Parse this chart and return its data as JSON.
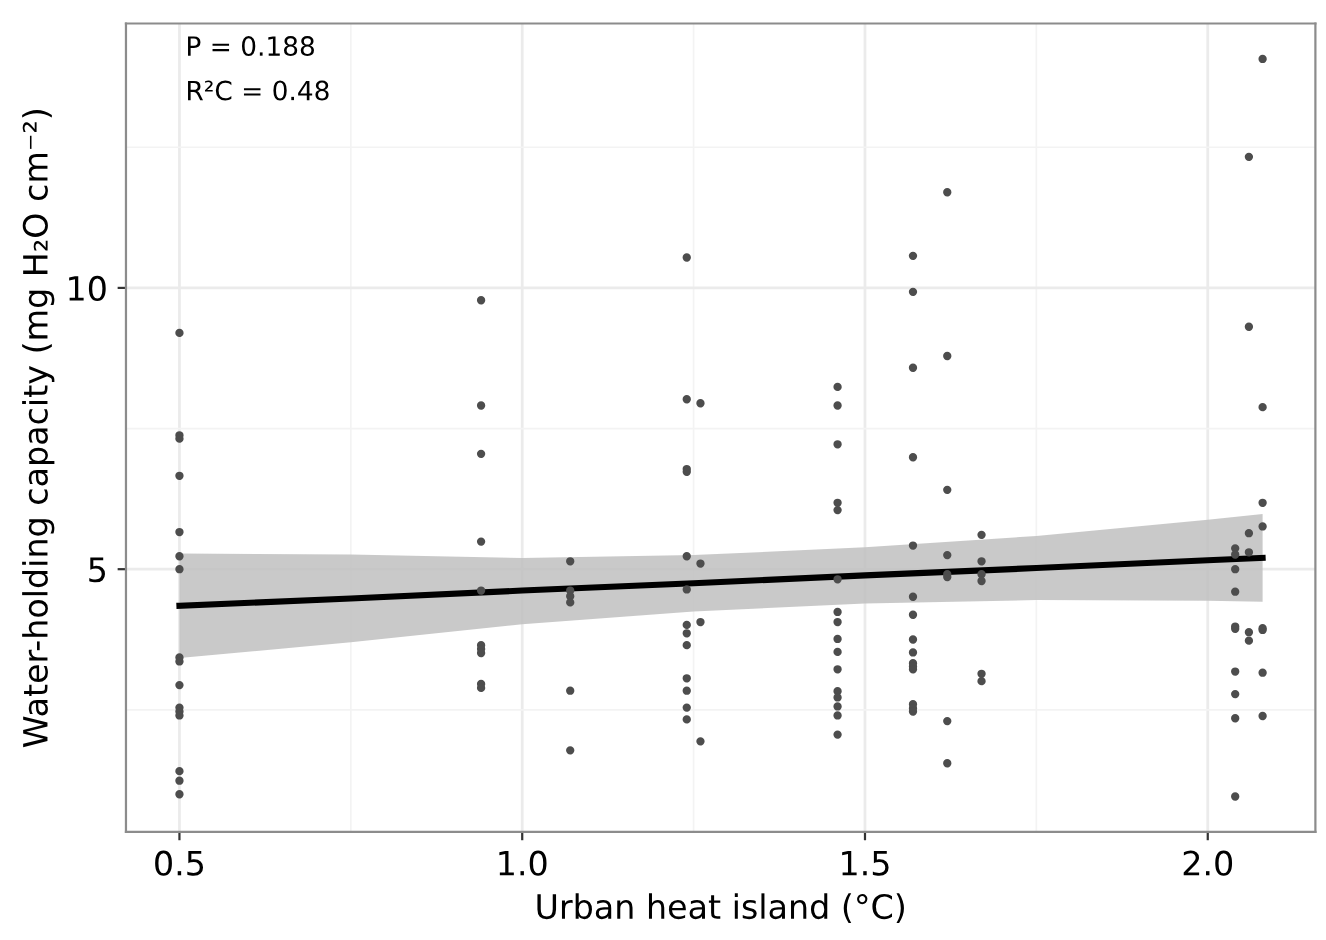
{
  "chart_data": {
    "type": "scatter",
    "xlabel": "Urban heat island (°C)",
    "ylabel": "Water-holding capacity (mg H₂O cm⁻²)",
    "annotations": [
      "P = 0.188",
      "R²C = 0.48"
    ],
    "xlim": [
      0.422,
      2.157
    ],
    "ylim": [
      0.33,
      14.7
    ],
    "xticks": [
      {
        "value": 0.5,
        "label": "0.5"
      },
      {
        "value": 1.0,
        "label": "1.0"
      },
      {
        "value": 1.5,
        "label": "1.5"
      },
      {
        "value": 2.0,
        "label": "2.0"
      }
    ],
    "yticks": [
      5,
      10
    ],
    "grid": true,
    "marker": "circle",
    "series": [
      {
        "color": "#4d4d4d",
        "x": [
          0.5,
          0.5,
          0.5,
          0.5,
          0.5,
          0.5,
          0.5,
          0.5,
          0.5,
          0.5,
          0.5,
          0.5,
          0.5,
          0.5,
          0.5,
          0.5,
          0.94,
          0.94,
          0.94,
          0.94,
          0.94,
          0.94,
          0.94,
          0.94,
          0.94,
          0.94,
          1.07,
          1.07,
          1.07,
          1.07,
          1.07,
          1.07,
          1.24,
          1.24,
          1.24,
          1.24,
          1.24,
          1.24,
          1.24,
          1.24,
          1.24,
          1.24,
          1.24,
          1.24,
          1.24,
          1.26,
          1.26,
          1.26,
          1.26,
          1.46,
          1.46,
          1.46,
          1.46,
          1.46,
          1.46,
          1.46,
          1.46,
          1.46,
          1.46,
          1.46,
          1.46,
          1.46,
          1.46,
          1.46,
          1.46,
          1.57,
          1.57,
          1.57,
          1.57,
          1.57,
          1.57,
          1.57,
          1.57,
          1.57,
          1.57,
          1.57,
          1.57,
          1.57,
          1.57,
          1.57,
          1.62,
          1.62,
          1.62,
          1.62,
          1.62,
          1.62,
          1.62,
          1.62,
          1.67,
          1.67,
          1.67,
          1.67,
          1.67,
          1.67,
          2.04,
          2.04,
          2.04,
          2.04,
          2.04,
          2.04,
          2.04,
          2.04,
          2.04,
          2.04,
          2.06,
          2.06,
          2.06,
          2.06,
          2.06,
          2.06,
          2.08,
          2.08,
          2.08,
          2.08,
          2.08,
          2.08,
          2.08,
          2.08
        ],
        "values": [
          9.2,
          7.38,
          7.32,
          6.66,
          5.66,
          5.23,
          5.0,
          3.43,
          3.36,
          2.94,
          2.54,
          2.47,
          2.4,
          1.41,
          1.24,
          1.0,
          9.78,
          7.91,
          7.05,
          5.49,
          4.62,
          3.65,
          3.58,
          3.51,
          2.96,
          2.89,
          5.14,
          4.62,
          4.52,
          4.41,
          2.84,
          1.78,
          10.54,
          8.02,
          6.78,
          6.73,
          5.23,
          4.64,
          4.01,
          3.86,
          3.65,
          3.06,
          2.84,
          2.54,
          2.33,
          7.95,
          5.1,
          4.06,
          1.94,
          8.24,
          7.91,
          7.22,
          6.18,
          6.05,
          4.82,
          4.24,
          4.06,
          3.76,
          3.53,
          3.22,
          2.83,
          2.72,
          2.56,
          2.4,
          2.06,
          10.57,
          9.93,
          8.58,
          6.99,
          5.42,
          4.51,
          4.19,
          3.75,
          3.52,
          3.33,
          3.27,
          3.22,
          2.6,
          2.53,
          2.47,
          11.7,
          8.79,
          6.41,
          5.25,
          4.91,
          4.86,
          2.3,
          1.55,
          5.61,
          5.14,
          4.91,
          4.79,
          3.14,
          3.01,
          5.37,
          5.26,
          5.0,
          4.6,
          3.98,
          3.94,
          3.18,
          2.78,
          2.35,
          0.96,
          12.33,
          9.31,
          5.64,
          5.3,
          3.88,
          3.73,
          14.07,
          7.88,
          6.18,
          5.76,
          3.95,
          3.92,
          3.16,
          2.39
        ]
      },
      {
        "type": "line",
        "color": "#000000",
        "marker": "none",
        "x": [
          0.5,
          0.75,
          1.0,
          1.25,
          1.5,
          1.75,
          2.0,
          2.08
        ],
        "values": [
          4.35,
          4.48,
          4.62,
          4.75,
          4.89,
          5.02,
          5.16,
          5.2
        ],
        "lower": [
          3.42,
          3.7,
          4.02,
          4.25,
          4.39,
          4.45,
          4.44,
          4.42
        ],
        "upper": [
          5.28,
          5.26,
          5.2,
          5.25,
          5.39,
          5.59,
          5.88,
          5.98
        ]
      }
    ]
  }
}
